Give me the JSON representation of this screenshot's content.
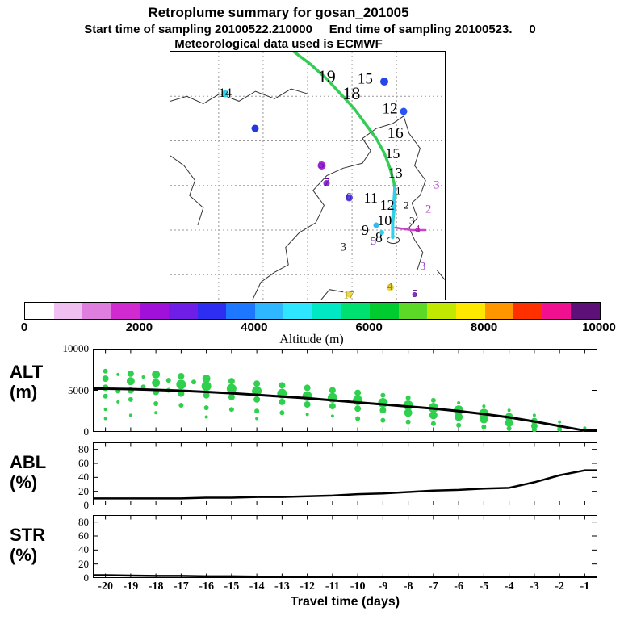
{
  "header": {
    "title": "Retroplume summary for gosan_201005",
    "subtitle": "Start time of sampling 20100522.210000     End time of sampling 20100523.     0",
    "met_line": "Meteorological data used is ECMWF"
  },
  "colorbar": {
    "label": "Altitude (m)",
    "ticks": [
      "0",
      "2000",
      "4000",
      "6000",
      "8000",
      "10000"
    ],
    "colors": [
      "#ffffff",
      "#f0c0f0",
      "#e07ee0",
      "#d02ad0",
      "#a010d8",
      "#6e1ee6",
      "#2e2ef2",
      "#1e78ff",
      "#2eb6ff",
      "#2ee6ff",
      "#00e8c4",
      "#00e070",
      "#00cc30",
      "#5cd926",
      "#c0e800",
      "#ffe800",
      "#ff9600",
      "#ff3000",
      "#f01090",
      "#5c1078"
    ]
  },
  "map": {
    "trajectory_green": [
      [
        45,
        0
      ],
      [
        51,
        5
      ],
      [
        57,
        11
      ],
      [
        62,
        17
      ],
      [
        67,
        23
      ],
      [
        71,
        29
      ],
      [
        75,
        35
      ],
      [
        78,
        41
      ],
      [
        80,
        47
      ],
      [
        81.5,
        53
      ],
      [
        82,
        58
      ],
      [
        81.5,
        64
      ],
      [
        81,
        70
      ],
      [
        81,
        75
      ]
    ],
    "trajectory_cyan": [
      [
        81.8,
        55
      ],
      [
        81.4,
        62
      ],
      [
        81,
        68
      ],
      [
        81,
        75
      ]
    ],
    "trajectory_magenta": [
      [
        82,
        71
      ],
      [
        88,
        72
      ],
      [
        93,
        72
      ]
    ],
    "trajectory_green_color": "#33cc55",
    "trajectory_cyan_color": "#33cfee",
    "trajectory_magenta_color": "#cc44cc",
    "markers": [
      {
        "t": "14",
        "x": 20,
        "y": 17,
        "c": "#33d0ee",
        "dot": 9,
        "lc": "#000000",
        "s": 16
      },
      {
        "t": "",
        "x": 31,
        "y": 31,
        "c": "#2338e0",
        "dot": 9,
        "lc": "",
        "s": 0
      },
      {
        "t": "15",
        "x": 71,
        "y": 11,
        "c": "",
        "dot": 0,
        "lc": "#000000",
        "s": 19
      },
      {
        "t": "",
        "x": 78,
        "y": 12,
        "c": "#2846e8",
        "dot": 10,
        "lc": "",
        "s": 0
      },
      {
        "t": "12",
        "x": 80,
        "y": 23,
        "c": "",
        "dot": 0,
        "lc": "#000000",
        "s": 19
      },
      {
        "t": "",
        "x": 85,
        "y": 24,
        "c": "#2855f0",
        "dot": 9,
        "lc": "",
        "s": 0
      },
      {
        "t": "19",
        "x": 57,
        "y": 10,
        "c": "",
        "dot": 0,
        "lc": "#000000",
        "s": 22
      },
      {
        "t": "18",
        "x": 66,
        "y": 17,
        "c": "",
        "dot": 0,
        "lc": "#000000",
        "s": 22
      },
      {
        "t": "16",
        "x": 82,
        "y": 33,
        "c": "",
        "dot": 0,
        "lc": "#000000",
        "s": 20
      },
      {
        "t": "15",
        "x": 81,
        "y": 41,
        "c": "",
        "dot": 0,
        "lc": "#000000",
        "s": 18
      },
      {
        "t": "13",
        "x": 82,
        "y": 49,
        "c": "",
        "dot": 0,
        "lc": "#000000",
        "s": 18
      },
      {
        "t": "11",
        "x": 73,
        "y": 59,
        "c": "",
        "dot": 0,
        "lc": "#000000",
        "s": 18
      },
      {
        "t": "12",
        "x": 79,
        "y": 62,
        "c": "",
        "dot": 0,
        "lc": "#000000",
        "s": 18
      },
      {
        "t": "10",
        "x": 78,
        "y": 68,
        "c": "",
        "dot": 0,
        "lc": "#000000",
        "s": 18
      },
      {
        "t": "9",
        "x": 71,
        "y": 72,
        "c": "",
        "dot": 0,
        "lc": "#000000",
        "s": 18
      },
      {
        "t": "8",
        "x": 76,
        "y": 75,
        "c": "",
        "dot": 0,
        "lc": "#000000",
        "s": 18
      },
      {
        "t": "1",
        "x": 83,
        "y": 56,
        "c": "",
        "dot": 0,
        "lc": "#000000",
        "s": 13
      },
      {
        "t": "2",
        "x": 86,
        "y": 62,
        "c": "",
        "dot": 0,
        "lc": "#000000",
        "s": 13
      },
      {
        "t": "3",
        "x": 88,
        "y": 68,
        "c": "",
        "dot": 0,
        "lc": "#000000",
        "s": 13
      },
      {
        "t": "5",
        "x": 55,
        "y": 46,
        "c": "#9a2ad0",
        "dot": 10,
        "lc": "#7a00b0",
        "s": 14
      },
      {
        "t": "7",
        "x": 57,
        "y": 53,
        "c": "#8a33cc",
        "dot": 8,
        "lc": "#6a00aa",
        "s": 14
      },
      {
        "t": "6",
        "x": 65,
        "y": 59,
        "c": "#5a46e0",
        "dot": 9,
        "lc": "#3a22c0",
        "s": 14
      },
      {
        "t": "3",
        "x": 97,
        "y": 54,
        "c": "",
        "dot": 0,
        "lc": "#b040c8",
        "s": 15
      },
      {
        "t": "2",
        "x": 94,
        "y": 64,
        "c": "",
        "dot": 0,
        "lc": "#b040c8",
        "s": 15
      },
      {
        "t": "4",
        "x": 90,
        "y": 72,
        "c": "#cc33cc",
        "dot": 6,
        "lc": "#aa22aa",
        "s": 14
      },
      {
        "t": "3",
        "x": 92,
        "y": 87,
        "c": "",
        "dot": 0,
        "lc": "#9a44cc",
        "s": 14
      },
      {
        "t": "5",
        "x": 89,
        "y": 98,
        "c": "#8833bb",
        "dot": 6,
        "lc": "#6a22a0",
        "s": 14
      },
      {
        "t": "4",
        "x": 80,
        "y": 95,
        "c": "#e8d84a",
        "dot": 9,
        "lc": "#a08800",
        "s": 14
      },
      {
        "t": "5",
        "x": 74,
        "y": 77,
        "c": "",
        "dot": 0,
        "lc": "#7a33b0",
        "s": 14
      },
      {
        "t": "3",
        "x": 63,
        "y": 79,
        "c": "",
        "dot": 0,
        "lc": "#222222",
        "s": 15
      },
      {
        "t": "",
        "x": 75,
        "y": 70,
        "c": "#33bbee",
        "dot": 7,
        "lc": "",
        "s": 0
      },
      {
        "t": "",
        "x": 77,
        "y": 73,
        "c": "#33ccee",
        "dot": 6,
        "lc": "",
        "s": 0
      },
      {
        "t": "17",
        "x": 65,
        "y": 98,
        "c": "#e8d84a",
        "dot": 8,
        "lc": "#a08800",
        "s": 13
      }
    ]
  },
  "time_axis": {
    "label": "Travel time (days)",
    "ticks": [
      -20,
      -19,
      -18,
      -17,
      -16,
      -15,
      -14,
      -13,
      -12,
      -11,
      -10,
      -9,
      -8,
      -7,
      -6,
      -5,
      -4,
      -3,
      -2,
      -1
    ],
    "domain": [
      -20.5,
      -0.5
    ]
  },
  "chart_data": [
    {
      "type": "scatter",
      "panel": "ALT",
      "label_top": "ALT",
      "label_bottom": "(m)",
      "ylim": [
        0,
        10000
      ],
      "yticks": [
        0,
        5000,
        10000
      ],
      "line_color": "#000000",
      "scatter_color": "#2ed04e",
      "x": [
        -20,
        -19,
        -18,
        -17,
        -16,
        -15,
        -14,
        -13,
        -12,
        -11,
        -10,
        -9,
        -8,
        -7,
        -6,
        -5,
        -4,
        -3,
        -2,
        -1
      ],
      "line": [
        5200,
        5150,
        5050,
        4950,
        4800,
        4650,
        4450,
        4250,
        4050,
        3800,
        3550,
        3300,
        3050,
        2800,
        2500,
        2150,
        1750,
        1250,
        700,
        150
      ],
      "scatter": [
        [
          -20,
          7300,
          3
        ],
        [
          -20,
          6400,
          4
        ],
        [
          -20,
          5300,
          4
        ],
        [
          -20,
          4300,
          3
        ],
        [
          -20,
          2700,
          2
        ],
        [
          -20,
          1600,
          2
        ],
        [
          -19.5,
          6900,
          2
        ],
        [
          -19.5,
          4900,
          3
        ],
        [
          -19.5,
          3600,
          2
        ],
        [
          -19,
          7000,
          4
        ],
        [
          -19,
          6100,
          5
        ],
        [
          -19,
          5000,
          4
        ],
        [
          -19,
          3900,
          3
        ],
        [
          -19,
          2000,
          2
        ],
        [
          -18.5,
          6600,
          2
        ],
        [
          -18.5,
          5400,
          3
        ],
        [
          -18,
          6900,
          5
        ],
        [
          -18,
          5900,
          5
        ],
        [
          -18,
          4800,
          4
        ],
        [
          -18,
          3400,
          3
        ],
        [
          -18,
          2300,
          2
        ],
        [
          -17.5,
          6200,
          3
        ],
        [
          -17.5,
          5000,
          3
        ],
        [
          -17,
          6700,
          4
        ],
        [
          -17,
          5700,
          6
        ],
        [
          -17,
          4600,
          4
        ],
        [
          -17,
          3200,
          3
        ],
        [
          -16.5,
          6000,
          3
        ],
        [
          -16,
          6400,
          5
        ],
        [
          -16,
          5500,
          6
        ],
        [
          -16,
          4400,
          4
        ],
        [
          -16,
          2900,
          3
        ],
        [
          -16,
          1800,
          2
        ],
        [
          -15,
          6100,
          4
        ],
        [
          -15,
          5200,
          6
        ],
        [
          -15,
          4200,
          4
        ],
        [
          -15,
          2700,
          3
        ],
        [
          -14,
          5800,
          4
        ],
        [
          -14,
          4900,
          6
        ],
        [
          -14,
          3900,
          4
        ],
        [
          -14,
          2500,
          3
        ],
        [
          -14,
          1600,
          2
        ],
        [
          -13,
          5600,
          4
        ],
        [
          -13,
          4600,
          6
        ],
        [
          -13,
          3600,
          4
        ],
        [
          -13,
          2300,
          3
        ],
        [
          -12,
          5300,
          4
        ],
        [
          -12,
          4300,
          6
        ],
        [
          -12,
          3300,
          4
        ],
        [
          -12,
          2100,
          2
        ],
        [
          -11,
          5000,
          4
        ],
        [
          -11,
          4100,
          6
        ],
        [
          -11,
          3100,
          4
        ],
        [
          -11,
          1900,
          2
        ],
        [
          -10,
          4700,
          4
        ],
        [
          -10,
          3800,
          6
        ],
        [
          -10,
          2800,
          4
        ],
        [
          -10,
          1600,
          3
        ],
        [
          -9,
          4400,
          3
        ],
        [
          -9,
          3500,
          6
        ],
        [
          -9,
          2600,
          4
        ],
        [
          -9,
          1400,
          3
        ],
        [
          -8,
          4100,
          3
        ],
        [
          -8,
          3200,
          6
        ],
        [
          -8,
          2300,
          5
        ],
        [
          -8,
          1200,
          3
        ],
        [
          -7,
          3800,
          3
        ],
        [
          -7,
          2900,
          6
        ],
        [
          -7,
          2000,
          5
        ],
        [
          -7,
          1000,
          3
        ],
        [
          -6,
          3500,
          2
        ],
        [
          -6,
          2600,
          6
        ],
        [
          -6,
          1800,
          5
        ],
        [
          -6,
          800,
          3
        ],
        [
          -5,
          3100,
          2
        ],
        [
          -5,
          2200,
          6
        ],
        [
          -5,
          1500,
          5
        ],
        [
          -5,
          600,
          3
        ],
        [
          -4,
          2600,
          2
        ],
        [
          -4,
          1800,
          5
        ],
        [
          -4,
          1100,
          5
        ],
        [
          -4,
          400,
          3
        ],
        [
          -3,
          2000,
          2
        ],
        [
          -3,
          1300,
          4
        ],
        [
          -3,
          700,
          4
        ],
        [
          -3,
          250,
          3
        ],
        [
          -2,
          1200,
          2
        ],
        [
          -2,
          650,
          3
        ],
        [
          -2,
          300,
          3
        ],
        [
          -1,
          450,
          2
        ],
        [
          -1,
          150,
          3
        ]
      ]
    },
    {
      "type": "line",
      "panel": "ABL",
      "label_top": "ABL",
      "label_bottom": "(%)",
      "ylim": [
        0,
        90
      ],
      "yticks": [
        0,
        20,
        40,
        60,
        80
      ],
      "line_color": "#000000",
      "x": [
        -20,
        -19,
        -18,
        -17,
        -16,
        -15,
        -14,
        -13,
        -12,
        -11,
        -10,
        -9,
        -8,
        -7,
        -6,
        -5,
        -4,
        -3,
        -2,
        -1
      ],
      "line": [
        10,
        10,
        10,
        10,
        11,
        11,
        12,
        12,
        13,
        14,
        16,
        17,
        19,
        21,
        22,
        24,
        25,
        33,
        43,
        50
      ]
    },
    {
      "type": "line",
      "panel": "STR",
      "label_top": "STR",
      "label_bottom": "(%)",
      "ylim": [
        0,
        90
      ],
      "yticks": [
        0,
        20,
        40,
        60,
        80
      ],
      "line_color": "#000000",
      "x": [
        -20,
        -19,
        -18,
        -17,
        -16,
        -15,
        -14,
        -13,
        -12,
        -11,
        -10,
        -9,
        -8,
        -7,
        -6,
        -5,
        -4,
        -3,
        -2,
        -1
      ],
      "line": [
        4,
        3.5,
        3,
        3,
        2.5,
        2.5,
        2,
        2,
        2,
        2,
        1.5,
        1.5,
        1.5,
        1.5,
        1.5,
        1,
        1,
        1,
        1,
        1
      ]
    }
  ]
}
